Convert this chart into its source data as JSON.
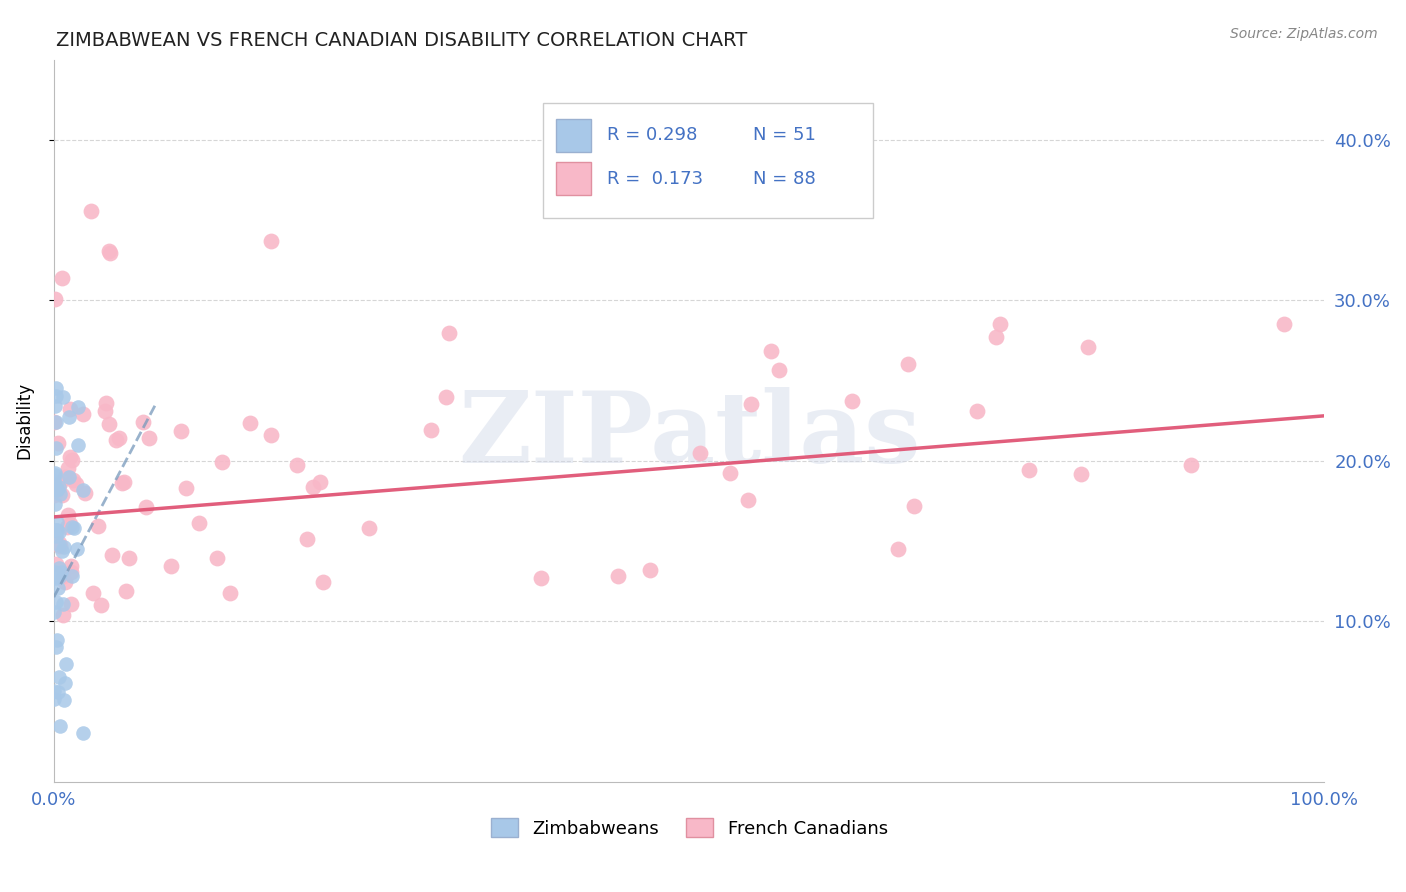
{
  "title": "ZIMBABWEAN VS FRENCH CANADIAN DISABILITY CORRELATION CHART",
  "source": "Source: ZipAtlas.com",
  "ylabel": "Disability",
  "legend_r1": "R = 0.298",
  "legend_n1": "N = 51",
  "legend_r2": "R = 0.173",
  "legend_n2": "N = 88",
  "watermark": "ZIPatlas",
  "zimbabwean_color": "#a8c8e8",
  "french_canadian_color": "#f8b8c8",
  "trend_blue_color": "#7799bb",
  "trend_pink_color": "#e05575",
  "background_color": "#ffffff",
  "grid_color": "#cccccc",
  "title_color": "#222222",
  "axis_label_color": "#4472c4",
  "ytick_values": [
    0.1,
    0.2,
    0.3,
    0.4
  ],
  "ytick_labels": [
    "10.0%",
    "20.0%",
    "30.0%",
    "40.0%"
  ],
  "xlim": [
    0.0,
    1.0
  ],
  "ylim": [
    0.0,
    0.45
  ],
  "zim_trend_x": [
    0.0,
    0.08
  ],
  "zim_trend_y": [
    0.115,
    0.235
  ],
  "fc_trend_x": [
    0.0,
    1.0
  ],
  "fc_trend_y": [
    0.165,
    0.228
  ]
}
